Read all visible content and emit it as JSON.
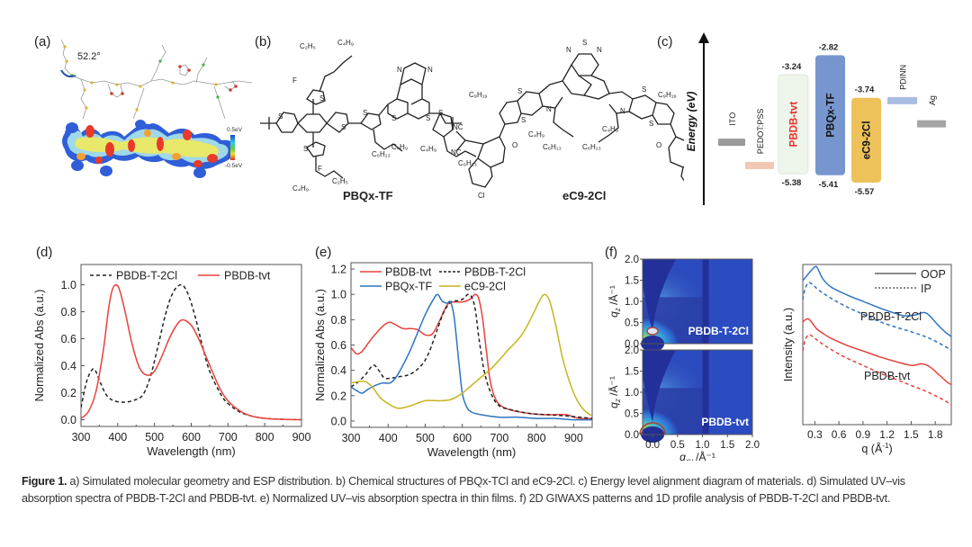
{
  "figure": {
    "caption_label": "Figure 1.",
    "caption_text": " a) Simulated molecular geometry and ESP distribution. b) Chemical structures of PBQx-TCl and eC9-2Cl. c) Energy level alignment diagram of materials. d) Simulated UV–vis absorption spectra of PBDB-T-2Cl and PBDB-tvt. e) Normalized UV–vis absorption spectra in thin films. f) 2D GIWAXS patterns and 1D profile analysis of PBDB-T-2Cl and PBDB-tvt."
  },
  "panels": {
    "a": {
      "label": "(a)",
      "angle": "52.2°",
      "colorbar_max": "0.5eV",
      "colorbar_min": "-0.5eV"
    },
    "b": {
      "label": "(b)",
      "molecule1": "PBQx-TF",
      "molecule2": "eC9-2Cl",
      "substituents": [
        "C2H5",
        "C4H9",
        "F",
        "S",
        "N",
        "C6H13",
        "C9H19",
        "NC",
        "CN",
        "O",
        "Cl"
      ]
    },
    "c": {
      "label": "(c)",
      "axis_label": "Energy (eV)"
    },
    "d": {
      "label": "(d)"
    },
    "e": {
      "label": "(e)"
    },
    "f": {
      "label": "(f)"
    }
  },
  "colors": {
    "red": "#e8413c",
    "blue": "#2f74c0",
    "yellow": "#c8b41c",
    "black": "#222222",
    "giwaxs_bg": "#2a3fa8"
  },
  "chart_data": [
    {
      "id": "c",
      "type": "bar",
      "title": "Energy level alignment",
      "ylabel": "Energy (eV)",
      "levels": [
        {
          "name": "ITO",
          "value": -4.7,
          "color": "#9a9a9a"
        },
        {
          "name": "PEDOT:PSS",
          "value": -5.2,
          "color": "#f2c8b4"
        },
        {
          "name": "PBDB-tvt",
          "lumo": -3.24,
          "homo": -5.38,
          "color": "#eef5ea",
          "label_color": "#e8302a"
        },
        {
          "name": "PBQx-TF",
          "lumo": -2.82,
          "homo": -5.41,
          "color": "#7796cf"
        },
        {
          "name": "eC9-2Cl",
          "lumo": -3.74,
          "homo": -5.57,
          "color": "#eec25a"
        },
        {
          "name": "PDINN",
          "value": -3.8,
          "color": "#a9bde3"
        },
        {
          "name": "Ag",
          "value": -4.3,
          "color": "#a5a5a5"
        }
      ],
      "value_labels": [
        "-3.24",
        "-2.82",
        "-3.74",
        "-5.38",
        "-5.41",
        "-5.57"
      ]
    },
    {
      "id": "d",
      "type": "line",
      "xlabel": "Wavelength (nm)",
      "ylabel": "Normalized Abs (a.u.)",
      "xlim": [
        300,
        900
      ],
      "ylim": [
        -0.05,
        1.15
      ],
      "xticks": [
        "300",
        "400",
        "500",
        "600",
        "700",
        "800",
        "900"
      ],
      "yticks": [
        "0.0",
        "0.2",
        "0.4",
        "0.6",
        "0.8",
        "1.0"
      ],
      "legend": "top",
      "series": [
        {
          "name": "PBDB-T-2Cl",
          "style": "dashed",
          "color": "#222222",
          "x": [
            300,
            315,
            330,
            340,
            355,
            370,
            390,
            420,
            450,
            470,
            490,
            510,
            530,
            550,
            572,
            590,
            610,
            630,
            650,
            680,
            700,
            730,
            760,
            800,
            850,
            900
          ],
          "y": [
            0.09,
            0.28,
            0.37,
            0.36,
            0.26,
            0.18,
            0.14,
            0.13,
            0.15,
            0.19,
            0.33,
            0.55,
            0.78,
            0.94,
            1.0,
            0.94,
            0.77,
            0.55,
            0.36,
            0.19,
            0.12,
            0.06,
            0.03,
            0.01,
            0.003,
            0.0
          ]
        },
        {
          "name": "PBDB-tvt",
          "style": "solid",
          "color": "#e8413c",
          "x": [
            300,
            320,
            340,
            360,
            375,
            385,
            395,
            405,
            420,
            440,
            460,
            480,
            500,
            520,
            540,
            560,
            577,
            600,
            620,
            640,
            660,
            680,
            700,
            730,
            760,
            800,
            850,
            900
          ],
          "y": [
            0.01,
            0.06,
            0.2,
            0.5,
            0.82,
            0.96,
            1.0,
            0.96,
            0.8,
            0.55,
            0.38,
            0.33,
            0.36,
            0.47,
            0.6,
            0.7,
            0.74,
            0.7,
            0.6,
            0.47,
            0.34,
            0.22,
            0.14,
            0.07,
            0.03,
            0.01,
            0.003,
            0.0
          ]
        }
      ]
    },
    {
      "id": "e",
      "type": "line",
      "xlabel": "Wavelength (nm)",
      "ylabel": "Normalized Abs (a.u.)",
      "xlim": [
        300,
        950
      ],
      "ylim": [
        -0.05,
        1.25
      ],
      "xticks": [
        "300",
        "400",
        "500",
        "600",
        "700",
        "800",
        "900"
      ],
      "yticks": [
        "0.0",
        "0.2",
        "0.4",
        "0.6",
        "0.8",
        "1.0",
        "1.2"
      ],
      "legend": "top",
      "series": [
        {
          "name": "PBDB-tvt",
          "style": "solid",
          "color": "#e8413c",
          "x": [
            300,
            315,
            330,
            350,
            370,
            390,
            405,
            420,
            440,
            460,
            480,
            500,
            520,
            540,
            560,
            580,
            600,
            620,
            635,
            645,
            655,
            665,
            675,
            690,
            710,
            740,
            780,
            820,
            880,
            900,
            920,
            950
          ],
          "y": [
            0.58,
            0.53,
            0.55,
            0.63,
            0.7,
            0.76,
            0.78,
            0.76,
            0.73,
            0.73,
            0.72,
            0.68,
            0.69,
            0.8,
            0.92,
            0.94,
            0.94,
            0.96,
            1.0,
            0.96,
            0.8,
            0.55,
            0.32,
            0.17,
            0.11,
            0.08,
            0.06,
            0.05,
            0.05,
            0.03,
            0.02,
            0.02
          ]
        },
        {
          "name": "PBDB-T-2Cl",
          "style": "dashed",
          "color": "#222222",
          "x": [
            300,
            320,
            340,
            360,
            375,
            390,
            410,
            430,
            460,
            490,
            510,
            530,
            550,
            570,
            590,
            605,
            615,
            625,
            635,
            645,
            660,
            680,
            700,
            730,
            780,
            830,
            880,
            950
          ],
          "y": [
            0.27,
            0.31,
            0.37,
            0.44,
            0.4,
            0.34,
            0.34,
            0.35,
            0.37,
            0.44,
            0.54,
            0.7,
            0.86,
            0.94,
            0.95,
            0.97,
            1.0,
            0.98,
            0.88,
            0.65,
            0.38,
            0.2,
            0.12,
            0.09,
            0.06,
            0.05,
            0.04,
            0.02
          ]
        },
        {
          "name": "PBQx-TF",
          "style": "solid",
          "color": "#2f74c0",
          "x": [
            300,
            315,
            330,
            345,
            365,
            385,
            405,
            420,
            440,
            460,
            480,
            500,
            520,
            533,
            545,
            558,
            568,
            578,
            590,
            600,
            612,
            625,
            650,
            700,
            750,
            800,
            850,
            900,
            950
          ],
          "y": [
            0.27,
            0.24,
            0.22,
            0.25,
            0.28,
            0.3,
            0.3,
            0.34,
            0.44,
            0.56,
            0.7,
            0.84,
            0.95,
            1.0,
            0.95,
            0.93,
            0.94,
            0.82,
            0.48,
            0.22,
            0.11,
            0.07,
            0.05,
            0.03,
            0.03,
            0.02,
            0.02,
            0.01,
            0.01
          ]
        },
        {
          "name": "eC9-2Cl",
          "style": "solid",
          "color": "#c8b41c",
          "x": [
            300,
            320,
            340,
            360,
            380,
            410,
            430,
            460,
            500,
            540,
            570,
            600,
            640,
            680,
            720,
            760,
            790,
            810,
            822,
            835,
            850,
            870,
            890,
            910,
            930,
            950
          ],
          "y": [
            0.3,
            0.31,
            0.31,
            0.26,
            0.18,
            0.12,
            0.1,
            0.12,
            0.16,
            0.16,
            0.17,
            0.22,
            0.32,
            0.42,
            0.55,
            0.68,
            0.84,
            0.96,
            1.0,
            0.95,
            0.78,
            0.5,
            0.3,
            0.16,
            0.08,
            0.04
          ]
        }
      ]
    },
    {
      "id": "f-2d",
      "type": "heatmap",
      "xlabel": "qxy /Å-1",
      "ylabel": "qz /Å-1",
      "xlim": [
        -0.2,
        2.0
      ],
      "ylim": [
        0.0,
        2.0
      ],
      "xticks": [
        "0.0",
        "0.5",
        "1.0",
        "1.5",
        "2.0"
      ],
      "yticks": [
        "0.0",
        "0.5",
        "1.0",
        "1.5",
        "2.0"
      ],
      "maps": [
        {
          "name": "PBDB-T-2Cl",
          "label": "PBDB-T-2Cl"
        },
        {
          "name": "PBDB-tvt",
          "label": "PBDB-tvt"
        }
      ]
    },
    {
      "id": "f-1d",
      "type": "line",
      "xlabel": "q (Å-1)",
      "ylabel": "Intensity (a.u.)",
      "xlim": [
        0.15,
        2.0
      ],
      "ylim": [
        0,
        10
      ],
      "xticks": [
        "0.3",
        "0.6",
        "0.9",
        "1.2",
        "1.5",
        "1.8"
      ],
      "legend": "top-right",
      "legend_entries": [
        {
          "name": "OOP",
          "style": "solid"
        },
        {
          "name": "IP",
          "style": "dashed"
        }
      ],
      "annotations": [
        "PBDB-T-2Cl",
        "PBDB-tvt"
      ],
      "series": [
        {
          "name": "PBDB-T-2Cl OOP",
          "style": "solid",
          "color": "#2f74c0",
          "x": [
            0.15,
            0.2,
            0.25,
            0.3,
            0.33,
            0.4,
            0.5,
            0.7,
            0.9,
            1.1,
            1.3,
            1.42,
            1.55,
            1.65,
            1.72,
            1.82,
            1.92,
            2.0
          ],
          "y": [
            9.0,
            9.3,
            9.6,
            9.85,
            9.8,
            9.1,
            8.6,
            8.1,
            7.7,
            7.3,
            6.95,
            6.8,
            6.85,
            7.0,
            6.85,
            6.3,
            5.8,
            5.5
          ]
        },
        {
          "name": "PBDB-T-2Cl IP",
          "style": "dashed",
          "color": "#2f74c0",
          "x": [
            0.15,
            0.18,
            0.22,
            0.26,
            0.35,
            0.5,
            0.7,
            0.9,
            1.1,
            1.3,
            1.5,
            1.7,
            1.9,
            2.0
          ],
          "y": [
            7.8,
            8.5,
            8.85,
            8.8,
            8.4,
            7.9,
            7.35,
            6.9,
            6.45,
            6.1,
            5.8,
            5.45,
            4.95,
            4.65
          ]
        },
        {
          "name": "PBDB-tvt OOP",
          "style": "solid",
          "color": "#e8413c",
          "x": [
            0.15,
            0.18,
            0.22,
            0.26,
            0.32,
            0.4,
            0.5,
            0.7,
            0.9,
            1.1,
            1.3,
            1.5,
            1.62,
            1.68,
            1.75,
            1.85,
            1.95,
            2.0
          ],
          "y": [
            6.4,
            6.55,
            6.6,
            6.4,
            6.0,
            5.7,
            5.4,
            4.95,
            4.6,
            4.25,
            3.95,
            3.7,
            3.8,
            3.75,
            3.55,
            3.1,
            2.65,
            2.5
          ]
        },
        {
          "name": "PBDB-tvt IP",
          "style": "dashed",
          "color": "#e8413c",
          "x": [
            0.15,
            0.18,
            0.22,
            0.26,
            0.35,
            0.5,
            0.7,
            0.9,
            1.1,
            1.3,
            1.5,
            1.7,
            1.9,
            2.0
          ],
          "y": [
            4.6,
            5.3,
            5.6,
            5.55,
            5.2,
            4.7,
            4.15,
            3.7,
            3.25,
            2.85,
            2.45,
            2.05,
            1.55,
            1.25
          ]
        }
      ]
    }
  ]
}
